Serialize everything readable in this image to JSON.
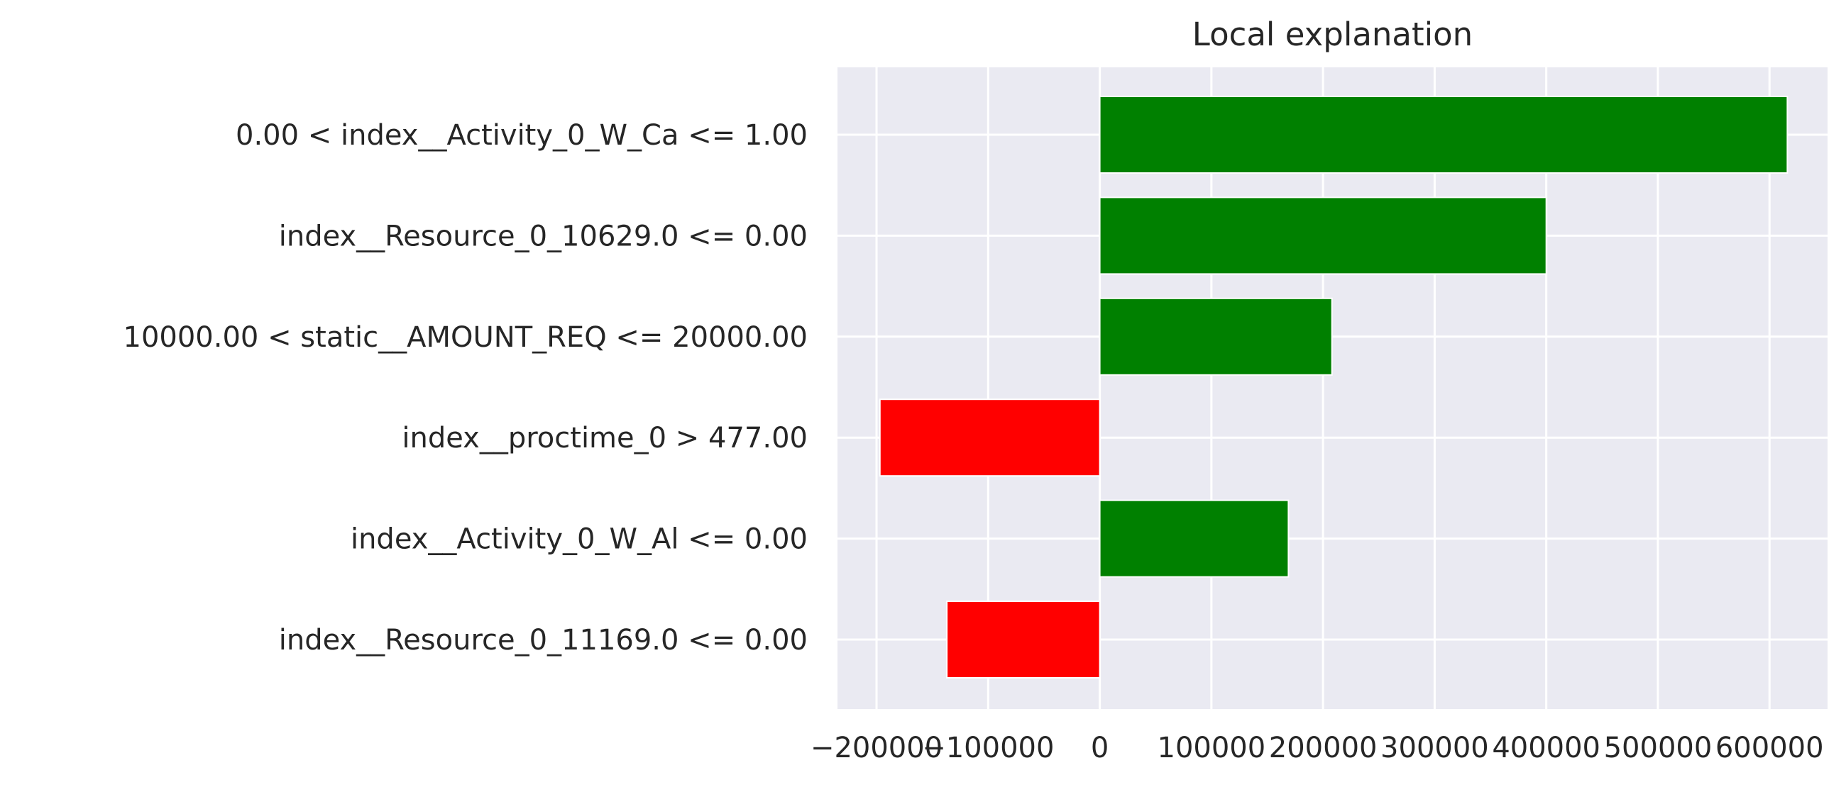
{
  "chart_data": {
    "type": "bar",
    "orientation": "horizontal",
    "title": "Local explanation",
    "xlabel": "",
    "ylabel": "",
    "categories": [
      "0.00 < index__Activity_0_W_Ca <= 1.00",
      "index__Resource_0_10629.0 <= 0.00",
      "10000.00 < static__AMOUNT_REQ <= 20000.00",
      "index__proctime_0 > 477.00",
      "index__Activity_0_W_Al <= 0.00",
      "index__Resource_0_11169.0 <= 0.00"
    ],
    "values": [
      616000,
      400000,
      208000,
      -197000,
      169000,
      -137000
    ],
    "colors": [
      "#008000",
      "#008000",
      "#008000",
      "#ff0000",
      "#008000",
      "#ff0000"
    ],
    "positive_color": "#008000",
    "negative_color": "#ff0000",
    "xlim": [
      -235000,
      652000
    ],
    "xticks": [
      -200000,
      -100000,
      0,
      100000,
      200000,
      300000,
      400000,
      500000,
      600000
    ],
    "xtick_labels": [
      "−200000",
      "−100000",
      "0",
      "100000",
      "200000",
      "300000",
      "400000",
      "500000",
      "600000"
    ],
    "grid": true,
    "legend": "none",
    "background_color": "#eaeaf2",
    "grid_color": "#ffffff"
  }
}
